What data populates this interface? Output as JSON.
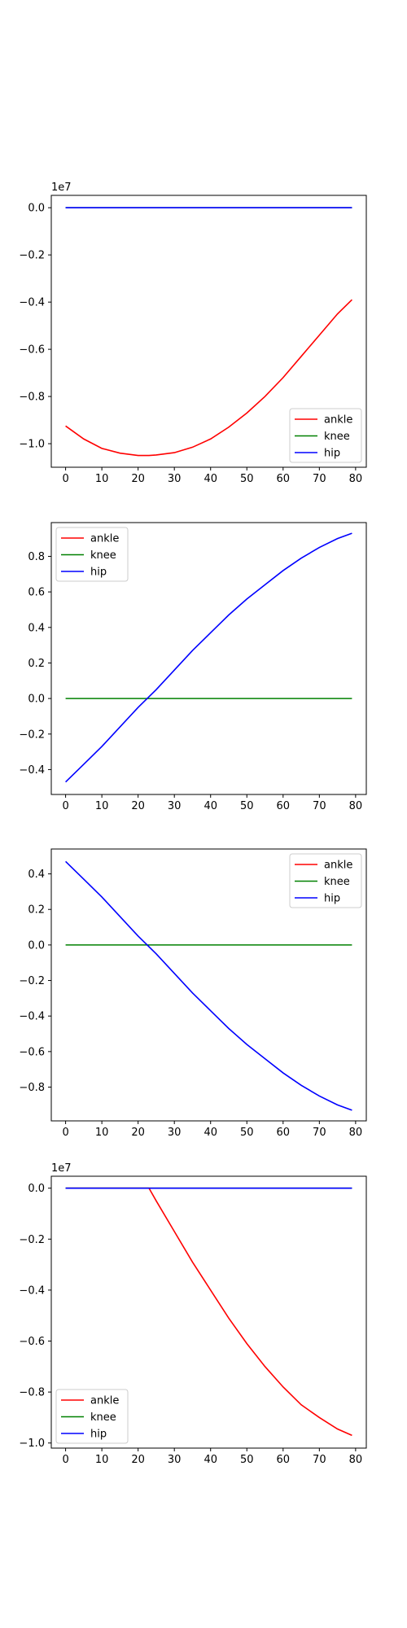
{
  "colors": {
    "ankle": "#ff0000",
    "knee": "#008000",
    "hip": "#0000ff"
  },
  "chart_data": [
    {
      "type": "line",
      "offset_label": "1e7",
      "xlim": [
        -3.95,
        82.95
      ],
      "ylim": [
        -1.0998,
        0.0524
      ],
      "xticks": [
        0,
        10,
        20,
        30,
        40,
        50,
        60,
        70,
        80
      ],
      "yticks": [
        0.0,
        -0.2,
        -0.4,
        -0.6,
        -0.8,
        -1.0
      ],
      "ytick_labels": [
        "0.0",
        "−0.2",
        "−0.4",
        "−0.6",
        "−0.8",
        "−1.0"
      ],
      "legend_placement": "lower-right",
      "series": [
        {
          "name": "ankle",
          "color": "#ff0000",
          "x": [
            0,
            5,
            10,
            15,
            20,
            23,
            25,
            30,
            35,
            40,
            45,
            50,
            55,
            60,
            65,
            70,
            75,
            79
          ],
          "y": [
            -0.925,
            -0.98,
            -1.02,
            -1.04,
            -1.05,
            -1.05,
            -1.048,
            -1.038,
            -1.015,
            -0.98,
            -0.93,
            -0.87,
            -0.8,
            -0.72,
            -0.63,
            -0.54,
            -0.45,
            -0.39
          ]
        },
        {
          "name": "knee",
          "color": "#008000",
          "x": [
            0,
            79
          ],
          "y": [
            0,
            0
          ]
        },
        {
          "name": "hip",
          "color": "#0000ff",
          "x": [
            0,
            79
          ],
          "y": [
            0,
            0
          ]
        }
      ]
    },
    {
      "type": "line",
      "offset_label": "",
      "xlim": [
        -3.95,
        82.95
      ],
      "ylim": [
        -0.54,
        0.99
      ],
      "xticks": [
        0,
        10,
        20,
        30,
        40,
        50,
        60,
        70,
        80
      ],
      "yticks": [
        0.8,
        0.6,
        0.4,
        0.2,
        0.0,
        -0.2,
        -0.4
      ],
      "ytick_labels": [
        "0.8",
        "0.6",
        "0.4",
        "0.2",
        "0.0",
        "−0.2",
        "−0.4"
      ],
      "legend_placement": "upper-left",
      "series": [
        {
          "name": "ankle",
          "color": "#ff0000",
          "x": [],
          "y": []
        },
        {
          "name": "knee",
          "color": "#008000",
          "x": [
            0,
            79
          ],
          "y": [
            0,
            0
          ]
        },
        {
          "name": "hip",
          "color": "#0000ff",
          "x": [
            0,
            5,
            10,
            15,
            20,
            25,
            30,
            35,
            40,
            45,
            50,
            55,
            60,
            65,
            70,
            75,
            79
          ],
          "y": [
            -0.47,
            -0.37,
            -0.27,
            -0.16,
            -0.05,
            0.05,
            0.16,
            0.27,
            0.37,
            0.47,
            0.56,
            0.64,
            0.72,
            0.79,
            0.85,
            0.9,
            0.93
          ]
        }
      ]
    },
    {
      "type": "line",
      "offset_label": "",
      "xlim": [
        -3.95,
        82.95
      ],
      "ylim": [
        -0.99,
        0.54
      ],
      "xticks": [
        0,
        10,
        20,
        30,
        40,
        50,
        60,
        70,
        80
      ],
      "yticks": [
        0.4,
        0.2,
        0.0,
        -0.2,
        -0.4,
        -0.6,
        -0.8
      ],
      "ytick_labels": [
        "0.4",
        "0.2",
        "0.0",
        "−0.2",
        "−0.4",
        "−0.6",
        "−0.8"
      ],
      "legend_placement": "upper-right",
      "series": [
        {
          "name": "ankle",
          "color": "#ff0000",
          "x": [],
          "y": []
        },
        {
          "name": "knee",
          "color": "#008000",
          "x": [
            0,
            79
          ],
          "y": [
            0,
            0
          ]
        },
        {
          "name": "hip",
          "color": "#0000ff",
          "x": [
            0,
            5,
            10,
            15,
            20,
            25,
            30,
            35,
            40,
            45,
            50,
            55,
            60,
            65,
            70,
            75,
            79
          ],
          "y": [
            0.47,
            0.37,
            0.27,
            0.16,
            0.05,
            -0.05,
            -0.16,
            -0.27,
            -0.37,
            -0.47,
            -0.56,
            -0.64,
            -0.72,
            -0.79,
            -0.85,
            -0.9,
            -0.93
          ]
        }
      ]
    },
    {
      "type": "line",
      "offset_label": "1e7",
      "xlim": [
        -3.95,
        82.95
      ],
      "ylim": [
        -1.02,
        0.0468
      ],
      "xticks": [
        0,
        10,
        20,
        30,
        40,
        50,
        60,
        70,
        80
      ],
      "yticks": [
        0.0,
        -0.2,
        -0.4,
        -0.6,
        -0.8,
        -1.0
      ],
      "ytick_labels": [
        "0.0",
        "−0.2",
        "−0.4",
        "−0.6",
        "−0.8",
        "−1.0"
      ],
      "legend_placement": "lower-left",
      "series": [
        {
          "name": "ankle",
          "color": "#ff0000",
          "x": [
            0,
            23,
            25,
            30,
            35,
            40,
            45,
            50,
            55,
            60,
            65,
            70,
            75,
            79
          ],
          "y": [
            0,
            0,
            -0.05,
            -0.17,
            -0.29,
            -0.4,
            -0.51,
            -0.61,
            -0.7,
            -0.78,
            -0.85,
            -0.9,
            -0.945,
            -0.97
          ]
        },
        {
          "name": "knee",
          "color": "#008000",
          "x": [
            0,
            79
          ],
          "y": [
            0,
            0
          ]
        },
        {
          "name": "hip",
          "color": "#0000ff",
          "x": [
            0,
            79
          ],
          "y": [
            0,
            0
          ]
        }
      ]
    }
  ]
}
